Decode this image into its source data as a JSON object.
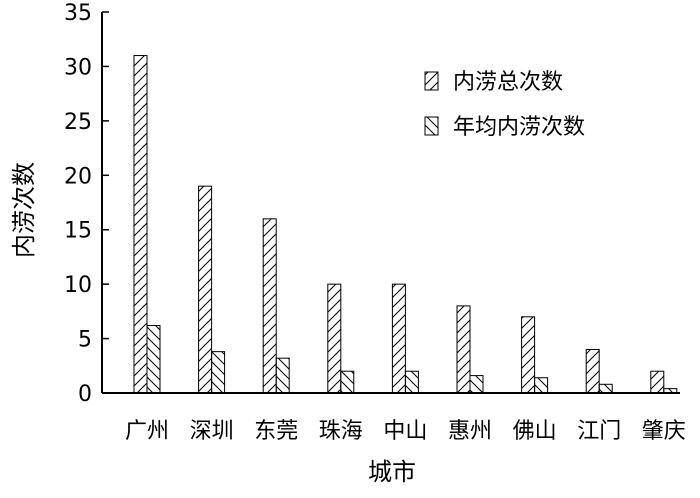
{
  "chart_data": {
    "type": "bar",
    "xlabel": "城市",
    "ylabel": "内涝次数",
    "ylim": [
      0,
      35
    ],
    "yticks": [
      0,
      5,
      10,
      15,
      20,
      25,
      30,
      35
    ],
    "grid": false,
    "legend_position": "top-right",
    "categories": [
      "广州",
      "深圳",
      "东莞",
      "珠海",
      "中山",
      "惠州",
      "佛山",
      "江门",
      "肇庆"
    ],
    "series": [
      {
        "name": "内涝总次数",
        "values": [
          31,
          19,
          16,
          10,
          10,
          8,
          7,
          4,
          2
        ],
        "hatch": "forward-diagonal"
      },
      {
        "name": "年均内涝次数",
        "values": [
          6.2,
          3.8,
          3.2,
          2.0,
          2.0,
          1.6,
          1.4,
          0.8,
          0.4
        ],
        "hatch": "backward-diagonal"
      }
    ]
  }
}
